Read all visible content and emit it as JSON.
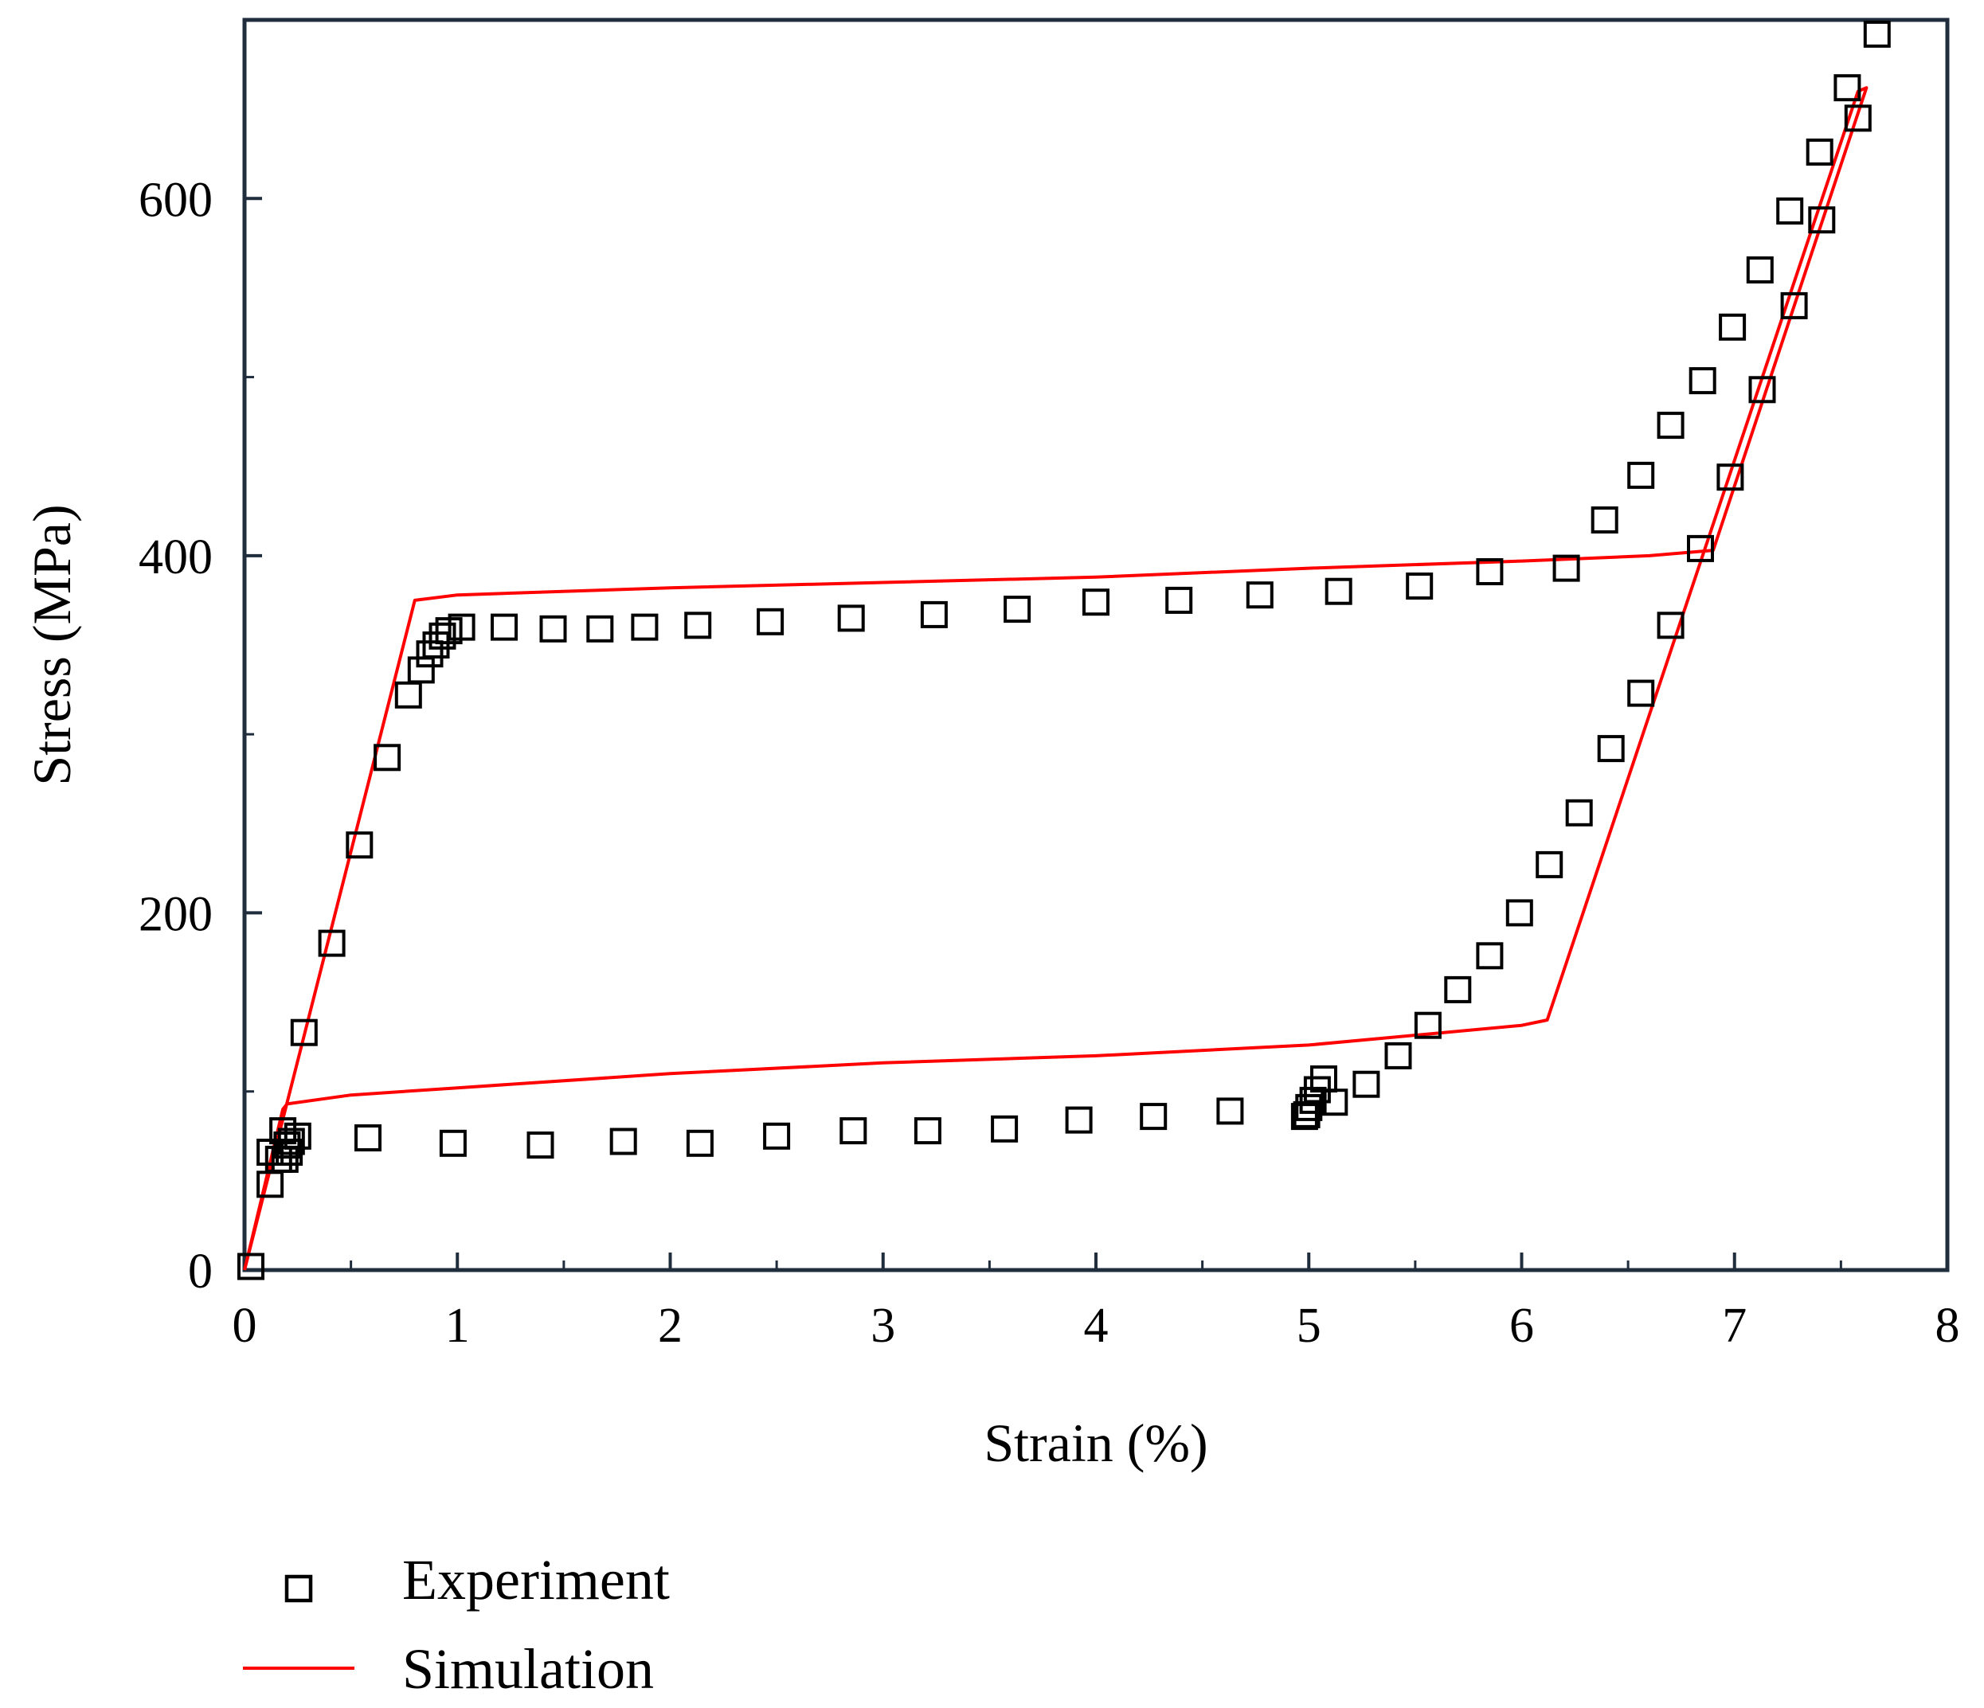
{
  "chart_data": {
    "type": "scatter",
    "title": "",
    "xlabel": "Strain (%)",
    "ylabel": "Stress (MPa)",
    "xlim": [
      0,
      8
    ],
    "ylim": [
      0,
      700
    ],
    "xticks": [
      "0",
      "1",
      "2",
      "3",
      "4",
      "5",
      "6",
      "7",
      "8"
    ],
    "yticks": [
      "0",
      "200",
      "400",
      "600"
    ],
    "grid": false,
    "legend_position": "bottom-left",
    "colors": {
      "experiment": "#000000",
      "simulation": "#ff0000"
    },
    "series": [
      {
        "name": "Experiment",
        "kind": "scatter",
        "marker": "open-square",
        "points": [
          [
            0.03,
            2
          ],
          [
            0.12,
            48
          ],
          [
            0.12,
            66
          ],
          [
            0.16,
            62
          ],
          [
            0.18,
            78
          ],
          [
            0.2,
            70
          ],
          [
            0.22,
            72
          ],
          [
            0.25,
            75
          ],
          [
            0.28,
            133
          ],
          [
            0.41,
            183
          ],
          [
            0.54,
            238
          ],
          [
            0.67,
            287
          ],
          [
            0.77,
            322
          ],
          [
            0.83,
            336
          ],
          [
            0.87,
            345
          ],
          [
            0.9,
            350
          ],
          [
            0.93,
            355
          ],
          [
            0.96,
            358
          ],
          [
            1.02,
            360
          ],
          [
            1.22,
            360
          ],
          [
            1.45,
            359
          ],
          [
            1.67,
            359
          ],
          [
            1.88,
            360
          ],
          [
            2.13,
            361
          ],
          [
            2.47,
            363
          ],
          [
            2.85,
            365
          ],
          [
            3.24,
            367
          ],
          [
            3.63,
            370
          ],
          [
            4.0,
            374
          ],
          [
            4.39,
            375
          ],
          [
            4.77,
            378
          ],
          [
            5.14,
            380
          ],
          [
            5.52,
            383
          ],
          [
            5.85,
            391
          ],
          [
            6.21,
            393
          ],
          [
            6.39,
            420
          ],
          [
            6.56,
            445
          ],
          [
            6.7,
            473
          ],
          [
            6.85,
            498
          ],
          [
            6.99,
            528
          ],
          [
            7.12,
            560
          ],
          [
            7.26,
            593
          ],
          [
            7.4,
            626
          ],
          [
            7.53,
            662
          ],
          [
            7.67,
            692
          ],
          [
            7.58,
            645
          ],
          [
            7.41,
            588
          ],
          [
            7.28,
            540
          ],
          [
            7.13,
            493
          ],
          [
            6.98,
            444
          ],
          [
            6.84,
            404
          ],
          [
            6.7,
            361
          ],
          [
            6.56,
            323
          ],
          [
            6.42,
            292
          ],
          [
            6.27,
            256
          ],
          [
            6.13,
            227
          ],
          [
            5.99,
            200
          ],
          [
            5.85,
            176
          ],
          [
            5.7,
            157
          ],
          [
            5.56,
            137
          ],
          [
            5.42,
            120
          ],
          [
            5.27,
            104
          ],
          [
            5.12,
            94
          ],
          [
            5.07,
            107
          ],
          [
            5.04,
            101
          ],
          [
            5.02,
            95
          ],
          [
            5.0,
            91
          ],
          [
            4.99,
            87
          ],
          [
            4.98,
            86
          ],
          [
            4.63,
            89
          ],
          [
            4.27,
            86
          ],
          [
            3.92,
            84
          ],
          [
            3.57,
            79
          ],
          [
            3.21,
            78
          ],
          [
            2.86,
            78
          ],
          [
            2.5,
            75
          ],
          [
            2.14,
            71
          ],
          [
            1.78,
            72
          ],
          [
            1.39,
            70
          ],
          [
            0.98,
            71
          ],
          [
            0.58,
            74
          ],
          [
            0.21,
            66
          ],
          [
            0.19,
            62
          ]
        ]
      },
      {
        "name": "Simulation",
        "kind": "line",
        "points": [
          [
            0.0,
            0
          ],
          [
            0.8,
            375
          ],
          [
            1.0,
            378
          ],
          [
            2.0,
            382
          ],
          [
            3.0,
            385
          ],
          [
            4.0,
            388
          ],
          [
            5.0,
            393
          ],
          [
            6.0,
            397
          ],
          [
            6.6,
            400
          ],
          [
            6.9,
            403
          ],
          [
            7.62,
            662
          ],
          [
            7.58,
            660
          ],
          [
            6.12,
            140
          ],
          [
            6.0,
            137
          ],
          [
            5.0,
            126
          ],
          [
            4.0,
            120
          ],
          [
            3.0,
            116
          ],
          [
            2.0,
            110
          ],
          [
            1.0,
            102
          ],
          [
            0.5,
            98
          ],
          [
            0.2,
            93
          ],
          [
            0.18,
            90
          ],
          [
            0.0,
            0
          ]
        ]
      }
    ]
  }
}
